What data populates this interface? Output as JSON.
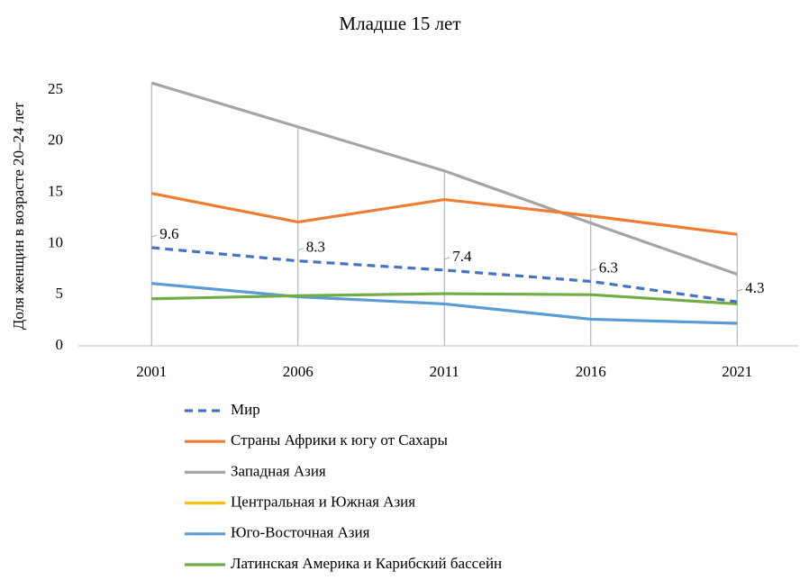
{
  "chart_data": {
    "type": "line",
    "title": "Младше 15 лет",
    "y_label": "Доля женщин в возрасте 20–24 лет",
    "categories": [
      "2001",
      "2006",
      "2011",
      "2016",
      "2021"
    ],
    "ylim": [
      0,
      25
    ],
    "yticks": [
      0,
      5,
      10,
      15,
      20,
      25
    ],
    "drop_lines": true,
    "legend": "bottom",
    "series": [
      {
        "name": "Мир",
        "color": "#4472c4",
        "dashed": true,
        "values": [
          9.6,
          8.3,
          7.4,
          6.3,
          4.3
        ],
        "value_labels": [
          "9.6",
          "8.3",
          "7.4",
          "6.3",
          "4.3"
        ]
      },
      {
        "name": "Страны Африки к югу от Сахары",
        "color": "#ed7d31",
        "values": [
          14.9,
          12.1,
          14.3,
          12.7,
          10.9
        ]
      },
      {
        "name": "Западная Азия",
        "color": "#a5a5a5",
        "values": [
          25.7,
          21.4,
          17.1,
          12.0,
          7.0
        ]
      },
      {
        "name": "Центральная и Южная Азия",
        "color": "#ffc000",
        "values": [
          null,
          null,
          null,
          null,
          null
        ]
      },
      {
        "name": "Юго-Восточная Азия",
        "color": "#5b9bd5",
        "values": [
          6.1,
          4.8,
          4.1,
          2.6,
          2.2
        ]
      },
      {
        "name": "Латинская Америка и Карибский бассейн",
        "color": "#70ad47",
        "values": [
          4.6,
          4.9,
          5.1,
          5.0,
          4.1
        ]
      }
    ]
  }
}
